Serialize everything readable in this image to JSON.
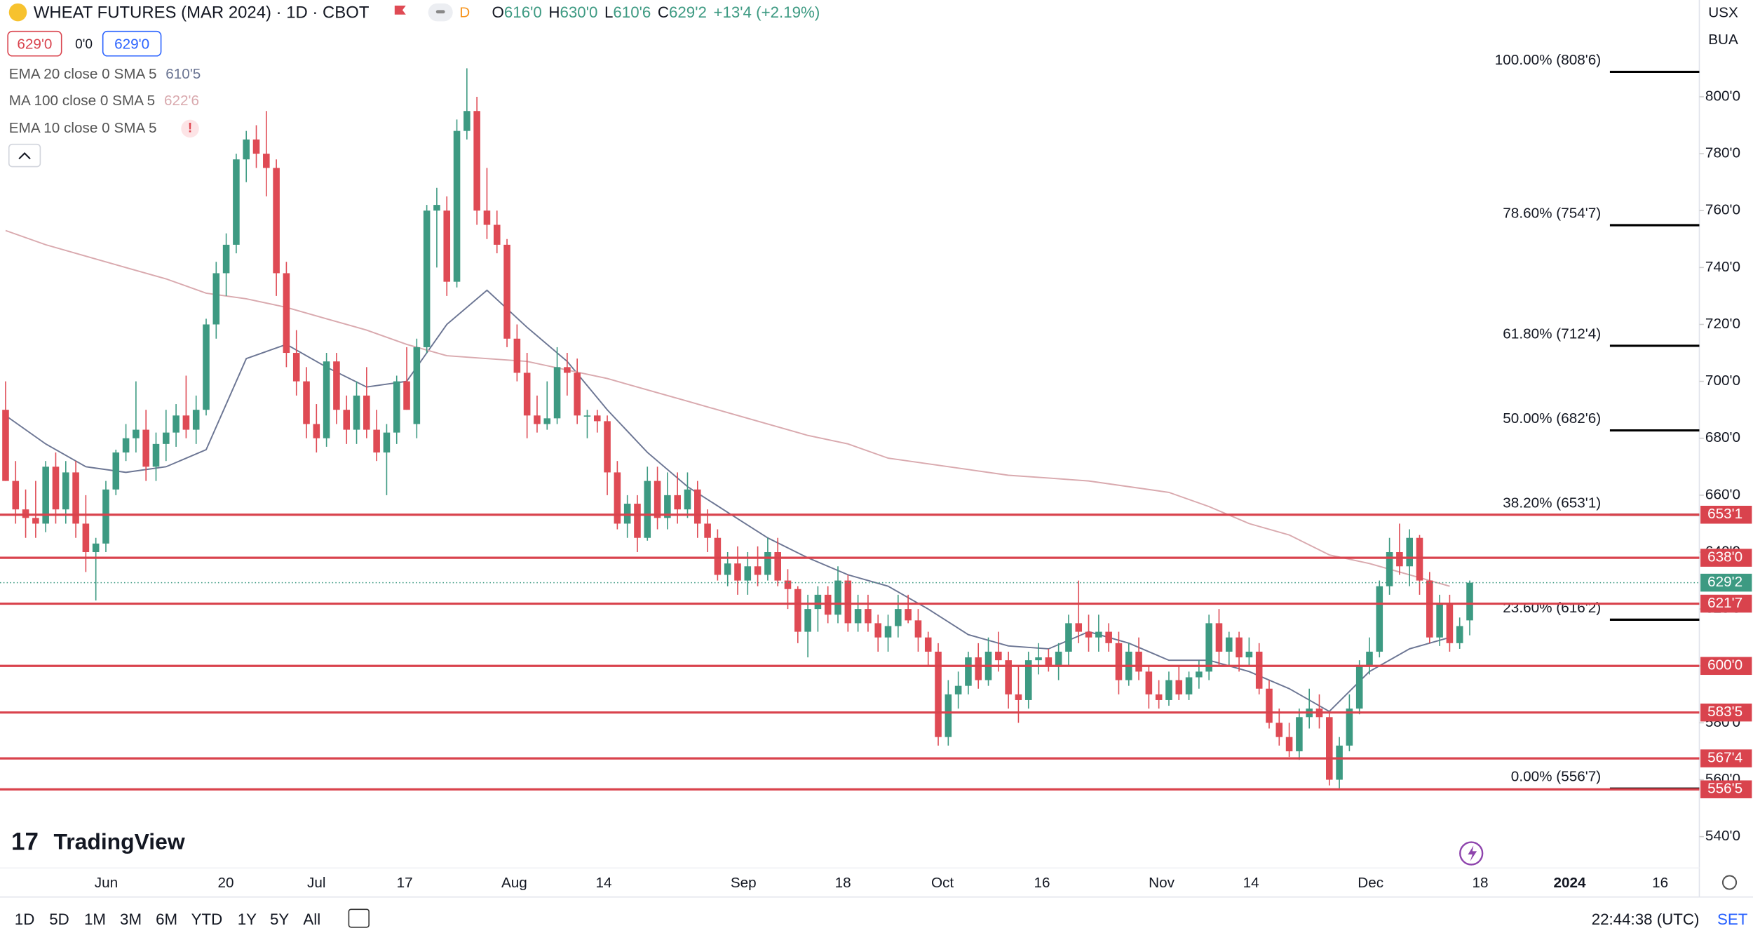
{
  "header": {
    "title": "WHEAT FUTURES (MAR 2024) · 1D · CBOT",
    "badge": "D",
    "ohlc": [
      {
        "key": "O",
        "value": "616'0"
      },
      {
        "key": "H",
        "value": "630'0"
      },
      {
        "key": "L",
        "value": "610'6"
      },
      {
        "key": "C",
        "value": "629'2"
      }
    ],
    "change": "+13'4 (+2.19%)",
    "bid": "629'0",
    "spread": "0'0",
    "ask": "629'0",
    "currency": "USX",
    "unit": "BUA"
  },
  "chart_data": {
    "type": "candlestick",
    "up_color": "#3d9a82",
    "down_color": "#df4a54",
    "candles": [
      [
        690,
        700,
        665,
        665
      ],
      [
        665,
        672,
        650,
        655
      ],
      [
        655,
        662,
        645,
        652
      ],
      [
        652,
        665,
        645,
        650
      ],
      [
        650,
        672,
        647,
        670
      ],
      [
        670,
        675,
        650,
        655
      ],
      [
        655,
        672,
        650,
        668
      ],
      [
        668,
        672,
        645,
        650
      ],
      [
        650,
        660,
        633,
        640
      ],
      [
        640,
        645,
        623,
        643
      ],
      [
        643,
        665,
        640,
        662
      ],
      [
        662,
        676,
        660,
        675
      ],
      [
        675,
        685,
        672,
        680
      ],
      [
        680,
        700,
        675,
        683
      ],
      [
        683,
        690,
        665,
        670
      ],
      [
        670,
        682,
        665,
        678
      ],
      [
        678,
        690,
        672,
        682
      ],
      [
        682,
        692,
        677,
        688
      ],
      [
        688,
        702,
        680,
        683
      ],
      [
        683,
        695,
        678,
        690
      ],
      [
        690,
        722,
        688,
        720
      ],
      [
        720,
        742,
        715,
        738
      ],
      [
        738,
        752,
        730,
        748
      ],
      [
        748,
        780,
        745,
        778
      ],
      [
        778,
        788,
        770,
        785
      ],
      [
        785,
        790,
        775,
        780
      ],
      [
        780,
        795,
        765,
        775
      ],
      [
        775,
        778,
        730,
        738
      ],
      [
        738,
        742,
        705,
        710
      ],
      [
        710,
        718,
        695,
        700
      ],
      [
        700,
        705,
        680,
        685
      ],
      [
        685,
        692,
        675,
        680
      ],
      [
        680,
        710,
        677,
        707
      ],
      [
        707,
        710,
        685,
        690
      ],
      [
        690,
        695,
        678,
        683
      ],
      [
        683,
        700,
        678,
        695
      ],
      [
        695,
        705,
        680,
        683
      ],
      [
        683,
        690,
        672,
        675
      ],
      [
        675,
        685,
        660,
        682
      ],
      [
        682,
        702,
        678,
        700
      ],
      [
        700,
        712,
        690,
        690
      ],
      [
        685,
        715,
        680,
        712
      ],
      [
        712,
        762,
        710,
        760
      ],
      [
        760,
        768,
        740,
        762
      ],
      [
        760,
        765,
        730,
        735
      ],
      [
        735,
        792,
        733,
        788
      ],
      [
        788,
        810,
        785,
        795
      ],
      [
        795,
        800,
        755,
        760
      ],
      [
        760,
        775,
        750,
        755
      ],
      [
        755,
        760,
        745,
        748
      ],
      [
        748,
        750,
        712,
        715
      ],
      [
        715,
        720,
        700,
        703
      ],
      [
        703,
        710,
        680,
        688
      ],
      [
        688,
        695,
        682,
        685
      ],
      [
        685,
        700,
        683,
        687
      ],
      [
        687,
        712,
        685,
        705
      ],
      [
        705,
        710,
        695,
        703
      ],
      [
        703,
        708,
        685,
        688
      ],
      [
        688,
        690,
        680,
        688
      ],
      [
        688,
        690,
        682,
        686
      ],
      [
        686,
        688,
        660,
        668
      ],
      [
        668,
        672,
        648,
        650
      ],
      [
        650,
        660,
        645,
        657
      ],
      [
        657,
        660,
        640,
        645
      ],
      [
        645,
        670,
        644,
        665
      ],
      [
        665,
        670,
        648,
        652
      ],
      [
        652,
        668,
        648,
        660
      ],
      [
        660,
        668,
        650,
        655
      ],
      [
        655,
        668,
        652,
        662
      ],
      [
        662,
        665,
        645,
        650
      ],
      [
        650,
        655,
        640,
        645
      ],
      [
        645,
        648,
        630,
        632
      ],
      [
        632,
        640,
        628,
        636
      ],
      [
        636,
        642,
        625,
        630
      ],
      [
        630,
        640,
        625,
        635
      ],
      [
        635,
        642,
        628,
        632
      ],
      [
        632,
        645,
        630,
        640
      ],
      [
        640,
        645,
        628,
        630
      ],
      [
        630,
        634,
        620,
        627
      ],
      [
        627,
        628,
        608,
        612
      ],
      [
        612,
        625,
        603,
        620
      ],
      [
        620,
        628,
        612,
        625
      ],
      [
        625,
        628,
        615,
        618
      ],
      [
        618,
        635,
        615,
        630
      ],
      [
        630,
        632,
        612,
        615
      ],
      [
        615,
        625,
        612,
        620
      ],
      [
        620,
        625,
        612,
        615
      ],
      [
        615,
        618,
        605,
        610
      ],
      [
        610,
        618,
        605,
        614
      ],
      [
        614,
        625,
        610,
        620
      ],
      [
        620,
        625,
        615,
        616
      ],
      [
        616,
        620,
        605,
        610
      ],
      [
        610,
        612,
        600,
        605
      ],
      [
        605,
        608,
        572,
        575
      ],
      [
        575,
        595,
        572,
        590
      ],
      [
        590,
        598,
        585,
        593
      ],
      [
        593,
        605,
        590,
        603
      ],
      [
        603,
        608,
        592,
        595
      ],
      [
        595,
        610,
        593,
        605
      ],
      [
        605,
        612,
        598,
        602
      ],
      [
        602,
        605,
        585,
        590
      ],
      [
        590,
        600,
        580,
        588
      ],
      [
        588,
        605,
        585,
        602
      ],
      [
        602,
        608,
        597,
        603
      ],
      [
        603,
        606,
        598,
        600
      ],
      [
        600,
        608,
        595,
        605
      ],
      [
        605,
        618,
        600,
        615
      ],
      [
        615,
        630,
        608,
        612
      ],
      [
        612,
        618,
        605,
        610
      ],
      [
        610,
        618,
        605,
        612
      ],
      [
        612,
        615,
        605,
        608
      ],
      [
        608,
        612,
        590,
        595
      ],
      [
        595,
        608,
        593,
        605
      ],
      [
        605,
        610,
        595,
        598
      ],
      [
        598,
        600,
        585,
        590
      ],
      [
        590,
        595,
        585,
        588
      ],
      [
        588,
        598,
        586,
        595
      ],
      [
        595,
        600,
        588,
        590
      ],
      [
        590,
        598,
        588,
        596
      ],
      [
        596,
        602,
        592,
        598
      ],
      [
        598,
        618,
        595,
        615
      ],
      [
        615,
        620,
        600,
        605
      ],
      [
        605,
        612,
        600,
        610
      ],
      [
        610,
        612,
        598,
        603
      ],
      [
        603,
        610,
        600,
        605
      ],
      [
        605,
        608,
        590,
        592
      ],
      [
        592,
        595,
        578,
        580
      ],
      [
        580,
        585,
        572,
        575
      ],
      [
        575,
        580,
        568,
        570
      ],
      [
        570,
        585,
        567,
        582
      ],
      [
        582,
        592,
        578,
        585
      ],
      [
        585,
        590,
        578,
        582
      ],
      [
        582,
        584,
        558,
        560
      ],
      [
        560,
        575,
        557,
        572
      ],
      [
        572,
        590,
        570,
        585
      ],
      [
        585,
        602,
        583,
        600
      ],
      [
        600,
        610,
        597,
        605
      ],
      [
        605,
        630,
        603,
        628
      ],
      [
        628,
        645,
        625,
        640
      ],
      [
        640,
        650,
        632,
        635
      ],
      [
        635,
        648,
        628,
        645
      ],
      [
        645,
        646,
        625,
        630
      ],
      [
        630,
        633,
        608,
        610
      ],
      [
        610,
        625,
        607,
        622
      ],
      [
        622,
        625,
        605,
        608
      ],
      [
        608,
        617,
        606,
        614
      ],
      [
        616,
        630,
        610.75,
        629.25
      ]
    ],
    "series": [
      {
        "name": "EMA 20 close 0 SMA 5",
        "color": "#6b7593",
        "last_label": "610'5",
        "values": [
          688,
          678,
          670,
          668,
          670,
          676,
          708,
          713,
          705,
          698,
          700,
          720,
          732,
          719,
          707,
          690,
          675,
          663,
          654,
          645,
          638,
          632,
          628,
          620,
          611,
          607,
          606,
          612,
          608,
          602,
          602,
          598,
          592,
          584,
          598,
          606,
          610
        ]
      },
      {
        "name": "MA 100 close 0 SMA 5",
        "color": "#d9a9ae",
        "last_label": "622'6",
        "values": [
          753,
          748,
          744,
          740,
          736,
          731,
          729,
          726,
          722,
          718,
          713,
          709,
          708,
          707,
          704,
          701,
          697,
          693,
          689,
          685,
          681,
          678,
          673,
          671,
          669,
          667,
          666,
          665,
          663,
          661,
          656,
          650,
          646,
          639,
          636,
          632,
          628
        ]
      }
    ],
    "alert_indicator": {
      "name": "EMA 10 close 0 SMA 5",
      "label": "!"
    },
    "ylim": [
      529,
      834
    ],
    "yticks": [
      {
        "value": 540,
        "label": "540'0"
      },
      {
        "value": 560,
        "label": "560'0"
      },
      {
        "value": 580,
        "label": "580'0"
      },
      {
        "value": 600,
        "label": "600'0"
      },
      {
        "value": 620,
        "label": "620'0"
      },
      {
        "value": 640,
        "label": "640'0"
      },
      {
        "value": 660,
        "label": "660'0"
      },
      {
        "value": 680,
        "label": "680'0"
      },
      {
        "value": 700,
        "label": "700'0"
      },
      {
        "value": 720,
        "label": "720'0"
      },
      {
        "value": 740,
        "label": "740'0"
      },
      {
        "value": 760,
        "label": "760'0"
      },
      {
        "value": 780,
        "label": "780'0"
      },
      {
        "value": 800,
        "label": "800'0"
      }
    ],
    "xlabels": [
      "Jun",
      "20",
      "Jul",
      "17",
      "Aug",
      "14",
      "Sep",
      "18",
      "Oct",
      "16",
      "Nov",
      "14",
      "Dec",
      "18",
      "2024",
      "16"
    ],
    "level_color": "#d9434d",
    "levels": [
      {
        "value": 653.125,
        "label": "653'1"
      },
      {
        "value": 638,
        "label": "638'0"
      },
      {
        "value": 621.875,
        "label": "621'7"
      },
      {
        "value": 600,
        "label": "600'0"
      },
      {
        "value": 583.625,
        "label": "583'5"
      },
      {
        "value": 567.5,
        "label": "567'4"
      },
      {
        "value": 556.625,
        "label": "556'5"
      }
    ],
    "fib": [
      {
        "value": 808.75,
        "label": "100.00% (808'6)"
      },
      {
        "value": 754.875,
        "label": "78.60% (754'7)"
      },
      {
        "value": 712.5,
        "label": "61.80% (712'4)"
      },
      {
        "value": 682.75,
        "label": "50.00% (682'6)"
      },
      {
        "value": 653.125,
        "label": "38.20% (653'1)"
      },
      {
        "value": 616.25,
        "label": "23.60% (616'2)"
      },
      {
        "value": 556.875,
        "label": "0.00% (556'7)"
      }
    ],
    "last": {
      "value": 629.25,
      "label": "629'2",
      "color": "#3d9a82"
    }
  },
  "footer": {
    "ranges": [
      "1D",
      "5D",
      "1M",
      "3M",
      "6M",
      "YTD",
      "1Y",
      "5Y",
      "All"
    ],
    "time": "22:44:38 (UTC)",
    "session": "SET",
    "logo": "TradingView"
  }
}
